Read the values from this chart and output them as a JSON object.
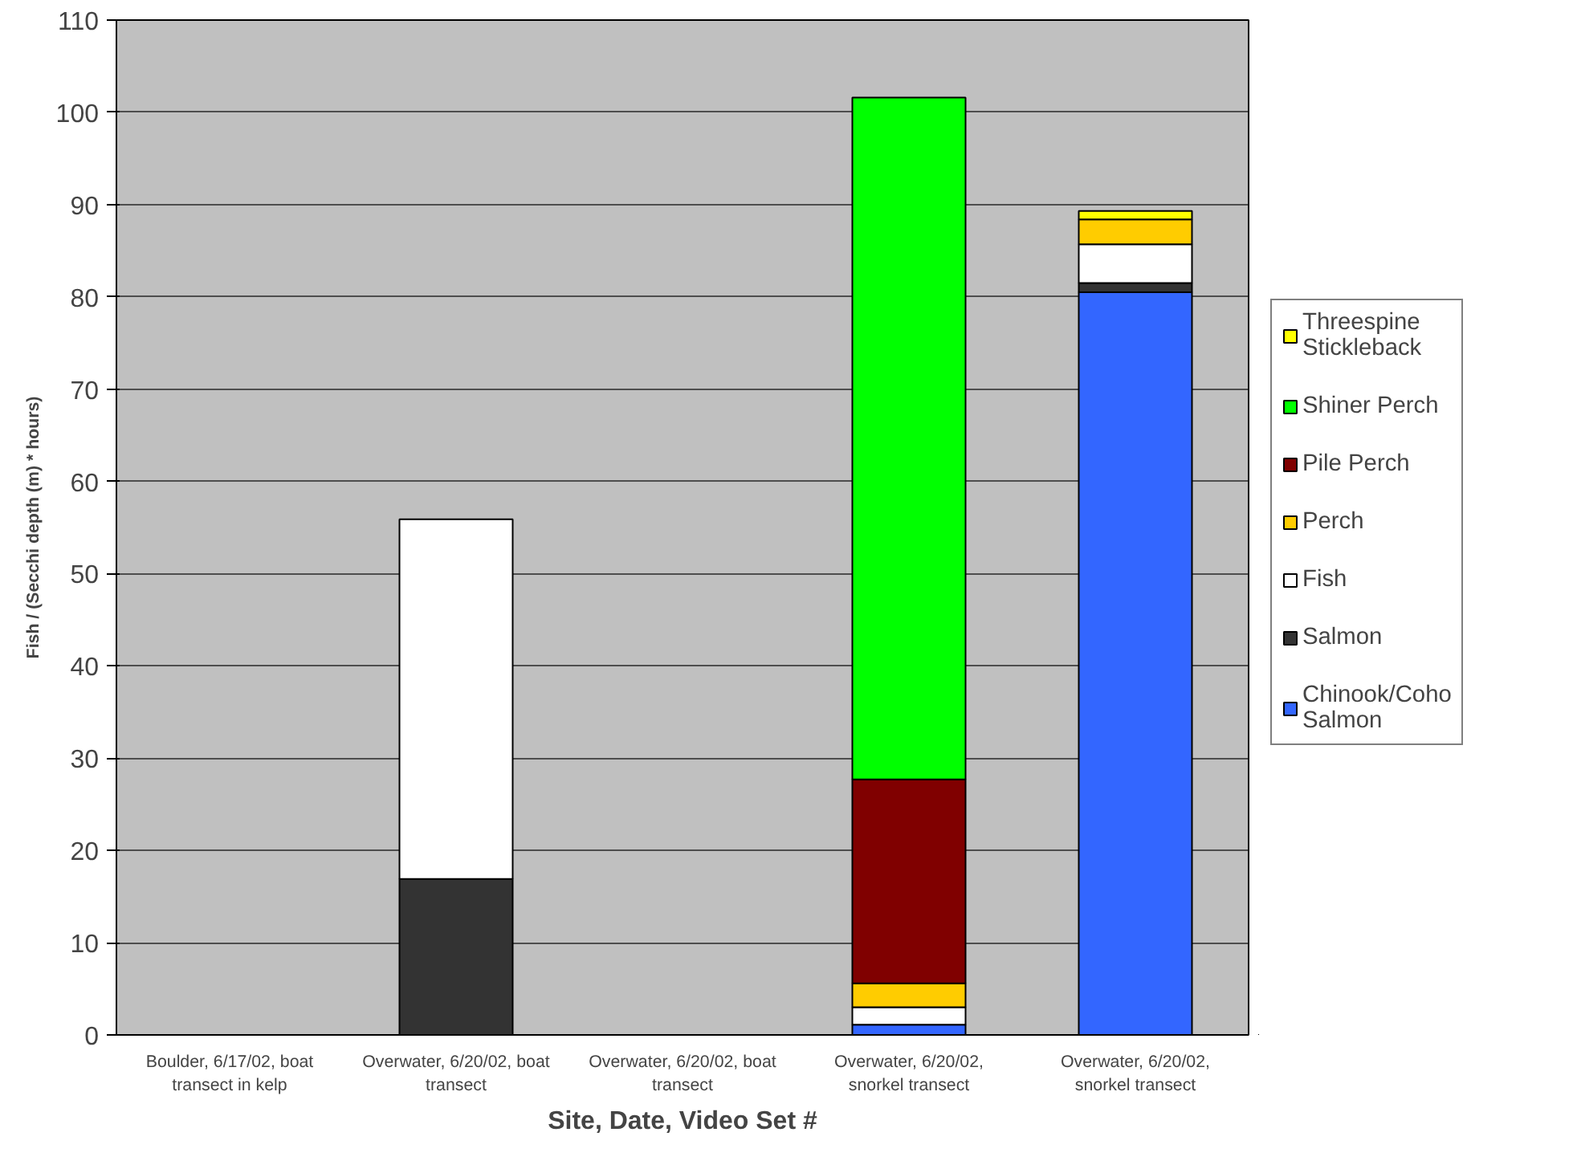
{
  "chart_data": {
    "type": "bar",
    "stacked": true,
    "xlabel": "Site, Date, Video Set #",
    "ylabel": "Fish / (Secchi depth (m) * hours)",
    "categories": [
      "Boulder, 6/17/02, boat transect in kelp",
      "Overwater, 6/20/02, boat transect",
      "Overwater, 6/20/02, boat transect",
      "Overwater, 6/20/02, snorkel transect",
      "Overwater, 6/20/02, snorkel transect"
    ],
    "series": [
      {
        "name": "Chinook/Coho Salmon",
        "color": "#3366ff",
        "values": [
          null,
          null,
          null,
          1.1,
          80.5
        ]
      },
      {
        "name": "Salmon",
        "color": "#333333",
        "values": [
          null,
          16.9,
          null,
          null,
          1.0
        ]
      },
      {
        "name": "Fish",
        "color": "#ffffff",
        "values": [
          null,
          39.0,
          null,
          1.9,
          4.2
        ]
      },
      {
        "name": "Perch",
        "color": "#ffcc00",
        "values": [
          null,
          null,
          null,
          2.6,
          2.7
        ]
      },
      {
        "name": "Pile Perch",
        "color": "#800000",
        "values": [
          null,
          null,
          null,
          22.1,
          null
        ]
      },
      {
        "name": "Shiner Perch",
        "color": "#00ff00",
        "values": [
          null,
          null,
          null,
          73.9,
          null
        ]
      },
      {
        "name": "Threespine Stickleback",
        "color": "#ffff00",
        "values": [
          null,
          null,
          null,
          null,
          0.9
        ]
      }
    ],
    "ylim": [
      0,
      110
    ],
    "yticks": [
      0,
      10,
      20,
      30,
      40,
      50,
      60,
      70,
      80,
      90,
      100,
      110
    ],
    "grid": "y",
    "legend": "right"
  }
}
